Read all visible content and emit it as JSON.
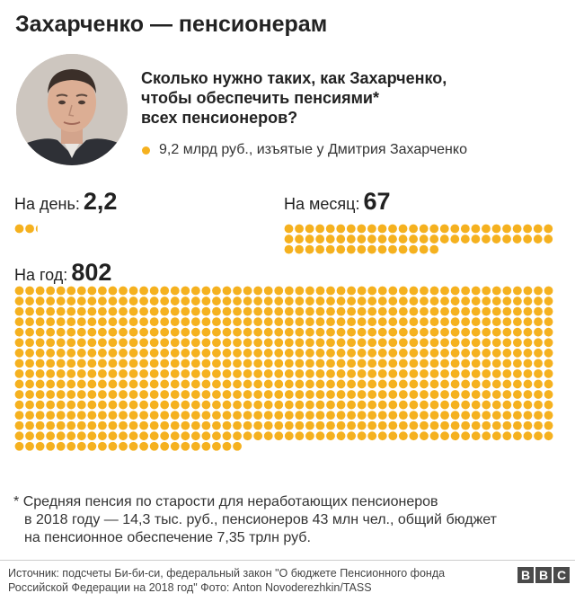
{
  "title": "Захарченко — пенсионерам",
  "question_lines": [
    "Сколько нужно таких, как Захарченко,",
    "чтобы обеспечить пенсиями*",
    "всех пенсионеров?"
  ],
  "legend_label": "9,2 млрд руб., изъятые у Дмитрия Захарченко",
  "colors": {
    "dot": "#f5b11f",
    "text": "#222222",
    "logo_bg": "#4a4a4a"
  },
  "periods": {
    "day": {
      "label": "На день:",
      "value": "2,2"
    },
    "month": {
      "label": "На месяц:",
      "value": "67"
    },
    "year": {
      "label": "На год:",
      "value": "802"
    }
  },
  "chart_data": {
    "type": "pictogram",
    "unit": "9,2 млрд руб., изъятые у Дмитрия Захарченко",
    "categories": [
      "На день",
      "На месяц",
      "На год"
    ],
    "values": [
      2.2,
      67,
      802
    ]
  },
  "footnote": {
    "marker": "*",
    "first_line": "Средняя пенсия по старости для неработающих пенсионеров",
    "rest_lines": [
      "в 2018 году — 14,3 тыс. руб., пенсионеров 43 млн чел., общий бюджет",
      "на пенсионное обеспечение 7,35 трлн руб."
    ]
  },
  "source_lines": [
    "Источник: подсчеты Би-би-си, федеральный закон \"О бюджете Пенсионного фонда",
    "Российской Федерации на 2018 год\"  Фото: Anton Novoderezhkin/TASS"
  ],
  "logo_letters": [
    "B",
    "B",
    "C"
  ]
}
